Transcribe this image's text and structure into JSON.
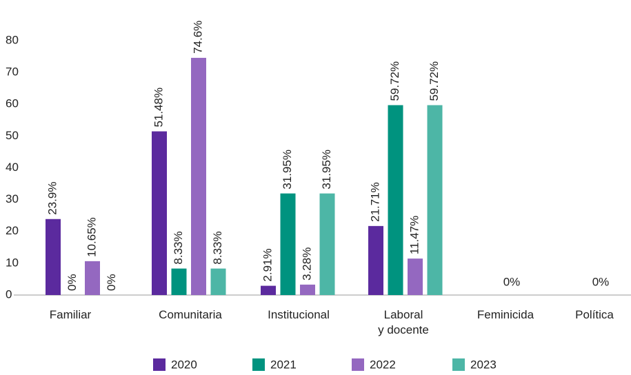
{
  "chart_data": {
    "type": "bar",
    "categories": [
      "Familiar",
      "Comunitaria",
      "Institucional",
      "Laboral\ny docente",
      "Feminicida",
      "Política"
    ],
    "series": [
      {
        "name": "2020",
        "color": "#5b2a9e",
        "values": [
          23.9,
          51.48,
          2.91,
          21.71,
          null,
          null
        ],
        "value_labels": [
          "23.9%",
          "51.48%",
          "2.91%",
          "21.71%",
          null,
          null
        ]
      },
      {
        "name": "2021",
        "color": "#00937f",
        "values": [
          0,
          8.33,
          31.95,
          59.72,
          0,
          0
        ],
        "value_labels": [
          "0%",
          "8.33%",
          "31.95%",
          "59.72%",
          "0%",
          "0%"
        ]
      },
      {
        "name": "2022",
        "color": "#9468c0",
        "values": [
          10.65,
          74.6,
          3.28,
          11.47,
          null,
          null
        ],
        "value_labels": [
          "10.65%",
          "74.6%",
          "3.28%",
          "11.47%",
          null,
          null
        ]
      },
      {
        "name": "2023",
        "color": "#4db6a6",
        "values": [
          0,
          8.33,
          31.95,
          59.72,
          null,
          null
        ],
        "value_labels": [
          "0%",
          "8.33%",
          "31.95%",
          "59.72%",
          null,
          null
        ]
      }
    ],
    "ylim": [
      0,
      80
    ],
    "yticks": [
      0,
      10,
      20,
      30,
      40,
      50,
      60,
      70,
      80
    ],
    "grid": false,
    "legend": "bottom"
  }
}
